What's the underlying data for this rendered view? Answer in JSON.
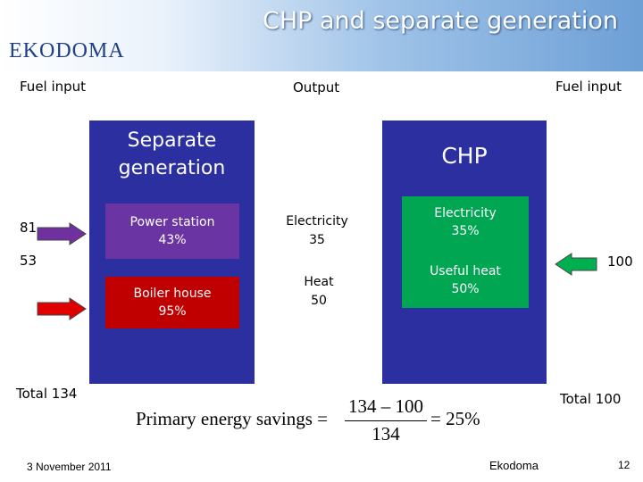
{
  "header": {
    "logo": "EKODOMA",
    "title": "CHP and separate generation"
  },
  "columns": {
    "left": "Fuel input",
    "middle": "Output",
    "right": "Fuel input"
  },
  "separate": {
    "title": "Separate generation",
    "power_station": {
      "label": "Power station",
      "efficiency": "43%",
      "fuel": "81"
    },
    "boiler": {
      "label": "Boiler house",
      "efficiency": "95%",
      "fuel": "53"
    },
    "total": "Total 134"
  },
  "outputs": [
    {
      "label": "Electricity",
      "value": "35"
    },
    {
      "label": "Heat",
      "value": "50"
    }
  ],
  "chp": {
    "title": "CHP",
    "electricity": {
      "label": "Electricity",
      "efficiency": "35%"
    },
    "heat": {
      "label": "Useful heat",
      "efficiency": "50%"
    },
    "fuel": "100",
    "total": "Total 100"
  },
  "formula": {
    "lhs": "Primary energy savings =",
    "numerator": "134 – 100",
    "denominator": "134",
    "result": "= 25%"
  },
  "footer": {
    "date": "3 November 2011",
    "company": "Ekodoma",
    "page": "12"
  }
}
